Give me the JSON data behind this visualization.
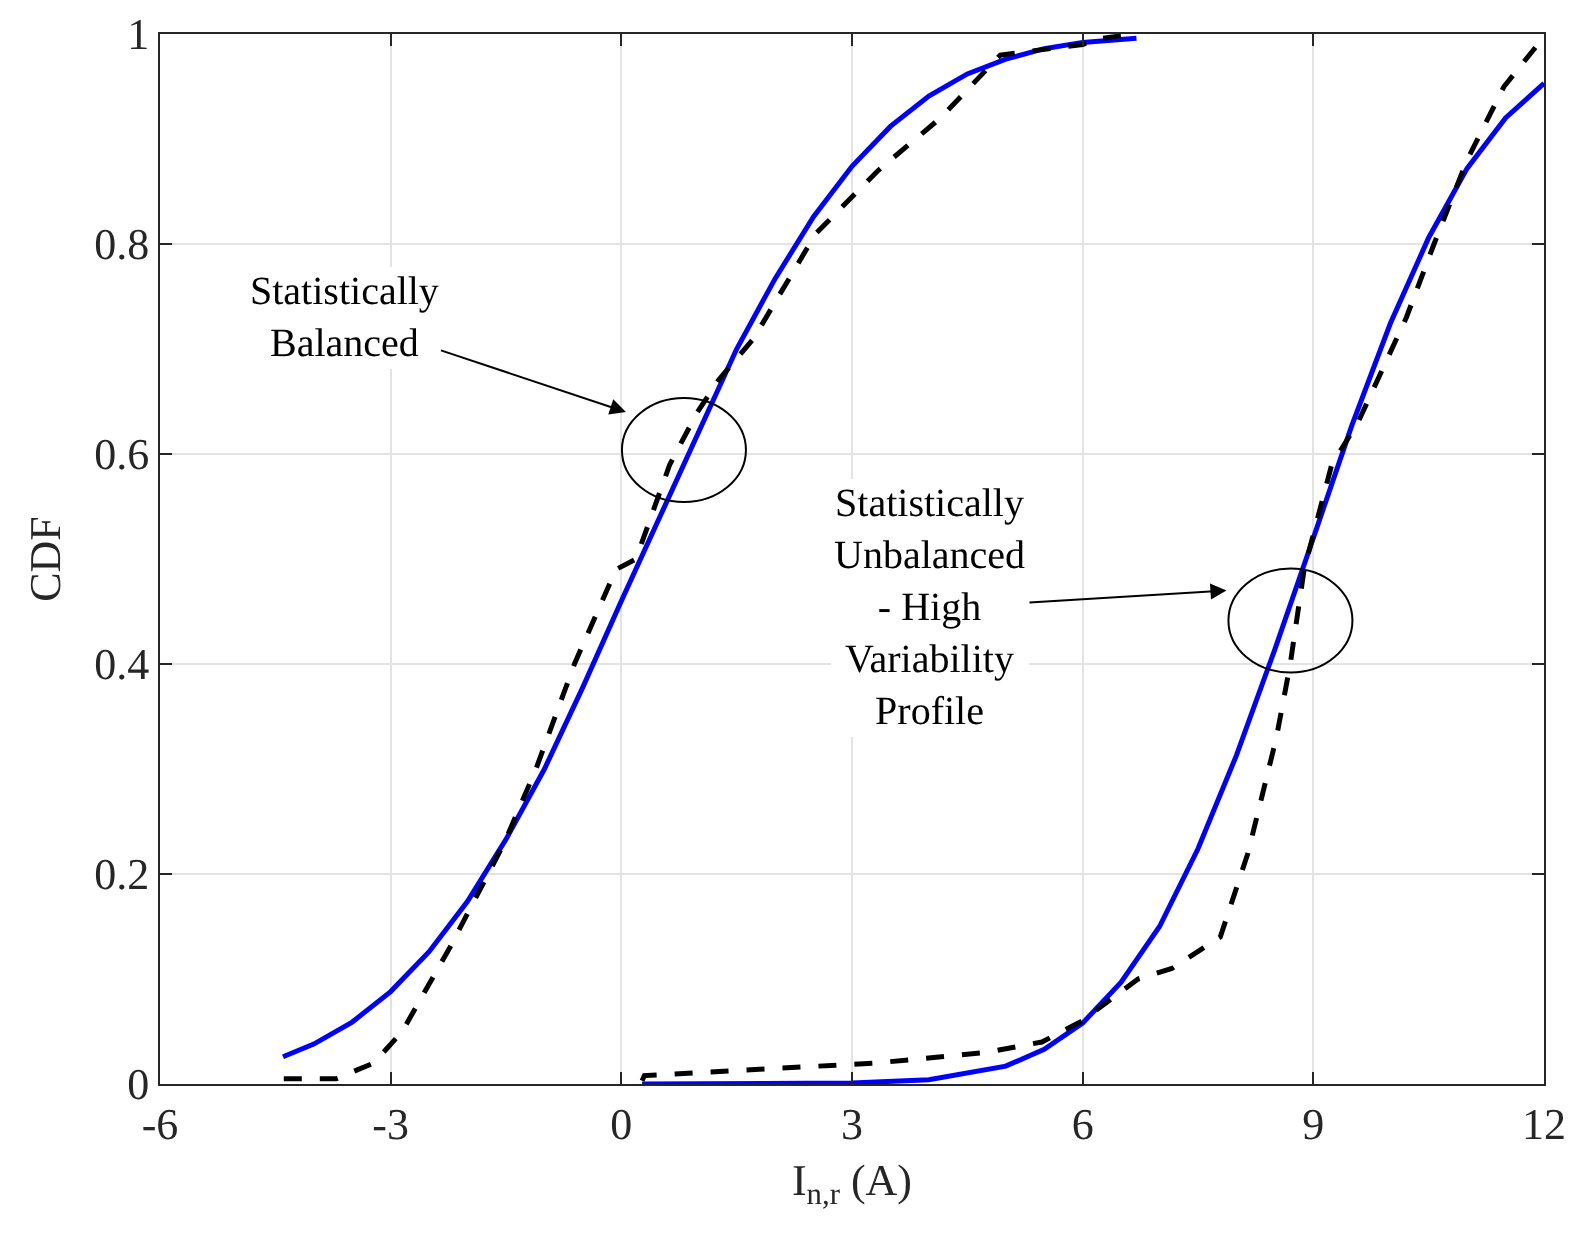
{
  "chart_data": {
    "type": "line",
    "xlabel": "I$_{n,r}$ (A)",
    "ylabel": "CDF",
    "xlim": [
      -6,
      12
    ],
    "xticks": [
      -6,
      -3,
      0,
      3,
      6,
      9,
      12
    ],
    "ylim": [
      0,
      1
    ],
    "yticks": [
      0,
      0.2,
      0.4,
      0.6,
      0.8,
      1
    ],
    "grid": true,
    "marker": "none",
    "series": [
      {
        "color": "#0000ff",
        "line_style": "solid",
        "x": [
          -4.4,
          -4,
          -3.5,
          -3,
          -2.5,
          -2,
          -1.5,
          -1,
          -0.5,
          0,
          0.5,
          1,
          1.5,
          2,
          2.5,
          3,
          3.5,
          4,
          4.5,
          5,
          5.5,
          6,
          6.7
        ],
        "values": [
          0.026,
          0.038,
          0.059,
          0.088,
          0.126,
          0.174,
          0.233,
          0.3,
          0.378,
          0.46,
          0.54,
          0.62,
          0.7,
          0.767,
          0.826,
          0.874,
          0.912,
          0.941,
          0.962,
          0.976,
          0.986,
          0.992,
          0.996
        ]
      },
      {
        "color": "#000000",
        "line_style": "dashed",
        "x": [
          -4.39,
          -3.71,
          -3.22,
          -2.85,
          -2.23,
          -1.52,
          -1.11,
          -0.61,
          -0.07,
          0.19,
          0.63,
          0.99,
          1.26,
          1.72,
          2.53,
          3.34,
          4.15,
          4.93,
          6.0,
          6.17,
          6.67
        ],
        "values": [
          0.005,
          0.005,
          0.02,
          0.05,
          0.13,
          0.23,
          0.3,
          0.4,
          0.49,
          0.5,
          0.59,
          0.64,
          0.67,
          0.71,
          0.81,
          0.87,
          0.92,
          0.98,
          0.99,
          0.995,
          1
        ]
      },
      {
        "color": "#0000ff",
        "line_style": "solid",
        "x": [
          0.27,
          3,
          4,
          5,
          5.5,
          6,
          6.5,
          7,
          7.5,
          8,
          8.5,
          9,
          9.5,
          10,
          10.5,
          11,
          11.5,
          12
        ],
        "values": [
          0,
          0.001,
          0.004,
          0.017,
          0.033,
          0.058,
          0.097,
          0.15,
          0.224,
          0.313,
          0.414,
          0.52,
          0.627,
          0.724,
          0.806,
          0.872,
          0.92,
          0.953
        ]
      },
      {
        "color": "#000000",
        "line_style": "dashed",
        "x": [
          0.27,
          0.3,
          3.31,
          4.74,
          5.47,
          5.99,
          6.72,
          7.16,
          7.79,
          8.15,
          8.52,
          8.7,
          8.88,
          9.24,
          9.58,
          10.21,
          10.57,
          11.0,
          11.48,
          11.92
        ],
        "values": [
          0.003,
          0.008,
          0.02,
          0.03,
          0.04,
          0.06,
          0.1,
          0.11,
          0.14,
          0.22,
          0.33,
          0.4,
          0.49,
          0.59,
          0.63,
          0.73,
          0.8,
          0.88,
          0.95,
          0.99
        ]
      }
    ],
    "annotations": [
      "Statistically\nBalanced",
      "Statistically\nUnbalanced\n- High\nVariability\nProfile"
    ]
  }
}
